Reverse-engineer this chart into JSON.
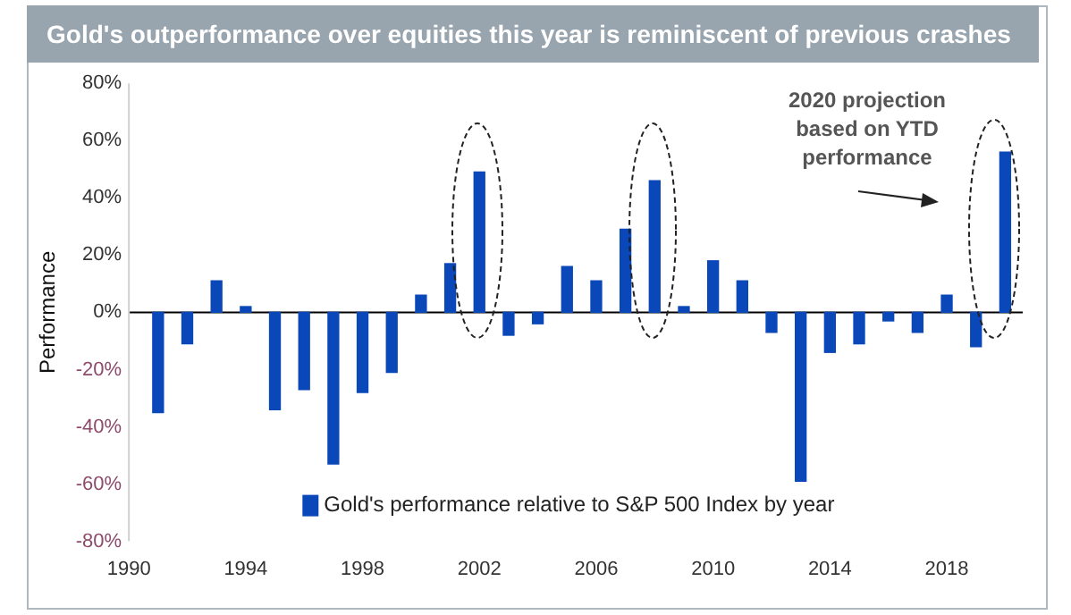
{
  "chart_data": {
    "type": "bar",
    "title": "Gold's outperformance over equities this year is reminiscent of previous crashes",
    "ylabel": "Performance",
    "x": [
      1991,
      1992,
      1993,
      1994,
      1995,
      1996,
      1997,
      1998,
      1999,
      2000,
      2001,
      2002,
      2003,
      2004,
      2005,
      2006,
      2007,
      2008,
      2009,
      2010,
      2011,
      2012,
      2013,
      2014,
      2015,
      2016,
      2017,
      2018,
      2019,
      2020
    ],
    "series": [
      {
        "name": "Gold's performance relative to S&P 500 Index by year",
        "color": "#0a47b8",
        "values": [
          -35,
          -11,
          11,
          2,
          -34,
          -27,
          -53,
          -28,
          -21,
          6,
          17,
          49,
          -8,
          -4,
          16,
          11,
          29,
          46,
          2,
          18,
          11,
          -7,
          -59,
          -14,
          -11,
          -3,
          -7,
          6,
          -12,
          56
        ]
      }
    ],
    "xlim": [
      1990,
      2020.6
    ],
    "xticks": [
      1990,
      1994,
      1998,
      2002,
      2006,
      2010,
      2014,
      2018
    ],
    "ylim": [
      -80,
      80
    ],
    "yticks": [
      {
        "value": -80,
        "label": "-80%"
      },
      {
        "value": -60,
        "label": "-60%"
      },
      {
        "value": -40,
        "label": "-40%"
      },
      {
        "value": -20,
        "label": "-20%"
      },
      {
        "value": 0,
        "label": "0%"
      },
      {
        "value": 20,
        "label": "20%"
      },
      {
        "value": 40,
        "label": "40%"
      },
      {
        "value": 60,
        "label": "60%"
      },
      {
        "value": 80,
        "label": "80%"
      }
    ],
    "annotations": [
      "2020 projection based on YTD performance"
    ],
    "ref_lines": [
      {
        "axis": "y",
        "value": 0,
        "color": "#000000"
      }
    ],
    "legend": "bottom",
    "grid": false
  }
}
